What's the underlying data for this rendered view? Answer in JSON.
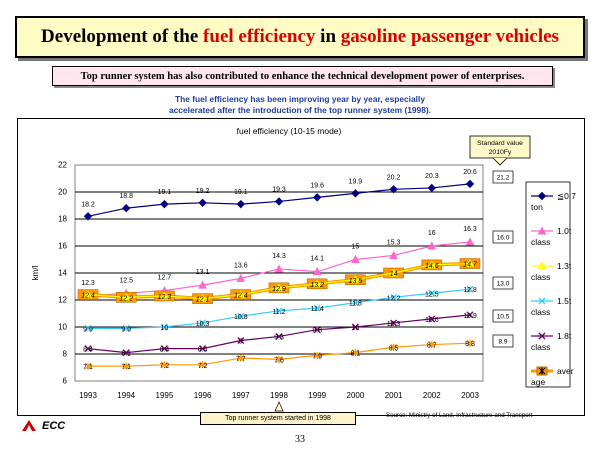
{
  "header": {
    "title_part1": "Development of the ",
    "title_part2": "fuel efficiency",
    "title_part3": " in ",
    "title_part4": "gasoline passenger vehicles"
  },
  "subheading": "Top runner system has also contributed to enhance the technical development power of enterprises.",
  "note": {
    "line1": "The fuel efficiency has been improving year by year, especially",
    "line2": "accelerated after the introduction of the top runner system (1998)."
  },
  "standard_label": {
    "line1": "Standard value",
    "line2": "2010Fy"
  },
  "footer": {
    "top_runner_label": "Top runner system  started  in 1998",
    "source": "Source: Ministry of Land, Infrastructure and Transport",
    "page_number": "33",
    "logo_text": "ECC"
  },
  "colors": {
    "s1": "#000080",
    "s2": "#ff66cc",
    "s3": "#ffff00",
    "s4": "#33ccff",
    "s5": "#660066",
    "s6": "#ff9900",
    "logo": "#cc0000"
  },
  "chart_data": {
    "type": "line",
    "title": "fuel efficiency (10-15 mode)",
    "ylabel": "km/l",
    "xlabel": "",
    "ylim": [
      6,
      22
    ],
    "yticks": [
      6,
      8,
      10,
      12,
      14,
      16,
      18,
      20,
      22
    ],
    "grid": true,
    "legend_position": "right",
    "categories": [
      "1993",
      "1994",
      "1995",
      "1996",
      "1997",
      "1998",
      "1999",
      "2000",
      "2001",
      "2002",
      "2003"
    ],
    "series": [
      {
        "name": "≦0.7 ton",
        "values": [
          18.2,
          18.8,
          19.1,
          19.2,
          19.1,
          19.3,
          19.6,
          19.9,
          20.2,
          20.3,
          20.6
        ],
        "labels": [
          "18.2",
          "18.8",
          "19.1",
          "19.2",
          "19.1",
          "19.3",
          "19.6",
          "19.9",
          "20.2",
          "20.3",
          "20.6"
        ],
        "standard": "21.2",
        "marker": "diamond"
      },
      {
        "name": "1.0t class",
        "values": [
          12.3,
          12.5,
          12.7,
          13.1,
          13.6,
          14.3,
          14.1,
          15.0,
          15.3,
          16.0,
          16.3
        ],
        "labels": [
          "12.3",
          "12.5",
          "12.7",
          "13.1",
          "13.6",
          "14.3",
          "14.1",
          "15",
          "15.3",
          "16",
          "16.3"
        ],
        "standard": "16.0",
        "marker": "triangle"
      },
      {
        "name": "1.3t class",
        "values": [
          12.4,
          12.2,
          12.3,
          12.1,
          12.4,
          12.9,
          13.2,
          13.5,
          14.0,
          14.6,
          14.7
        ],
        "labels": [
          "12.4",
          "12.2",
          "12.3",
          "12.1",
          "12.4",
          "12.9",
          "13.2",
          "13.5",
          "14",
          "14.6",
          "14.7"
        ],
        "standard": "13.0",
        "marker": "triangle"
      },
      {
        "name": "1.5t class",
        "values": [
          9.9,
          9.9,
          10.0,
          10.3,
          10.8,
          11.2,
          11.4,
          11.8,
          12.2,
          12.5,
          12.8
        ],
        "labels": [
          "9.9",
          "9.9",
          "10",
          "10.3",
          "10.8",
          "11.2",
          "11.4",
          "11.8",
          "12.2",
          "12.5",
          "12.8"
        ],
        "standard": "10.5",
        "marker": "x"
      },
      {
        "name": "1.8t class",
        "values": [
          8.4,
          8.1,
          8.4,
          8.4,
          9.0,
          9.3,
          9.8,
          10.0,
          10.3,
          10.6,
          10.9
        ],
        "labels": [
          "8.4",
          "8.1",
          "8.4",
          "8.4",
          "9",
          "9.3",
          "9.8",
          "10",
          "10.3",
          "10.6",
          "10.9"
        ],
        "standard": "8.9",
        "marker": "x"
      },
      {
        "name": "average",
        "values": [
          7.1,
          7.1,
          7.2,
          7.2,
          7.7,
          7.6,
          7.9,
          8.1,
          8.5,
          8.7,
          8.8
        ],
        "labels": [
          "7.1",
          "7.1",
          "7.2",
          "7.2",
          "7.7",
          "7.6",
          "7.9",
          "8.1",
          "8.5",
          "8.7",
          "8.8"
        ],
        "marker": "star"
      }
    ]
  }
}
